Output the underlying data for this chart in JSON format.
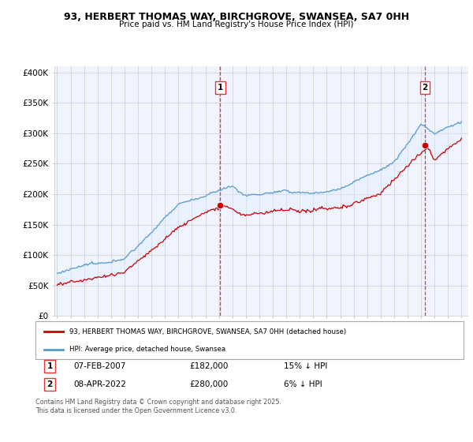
{
  "title": "93, HERBERT THOMAS WAY, BIRCHGROVE, SWANSEA, SA7 0HH",
  "subtitle": "Price paid vs. HM Land Registry's House Price Index (HPI)",
  "ylabel_ticks": [
    "£0",
    "£50K",
    "£100K",
    "£150K",
    "£200K",
    "£250K",
    "£300K",
    "£350K",
    "£400K"
  ],
  "ytick_values": [
    0,
    50000,
    100000,
    150000,
    200000,
    250000,
    300000,
    350000,
    400000
  ],
  "ylim": [
    0,
    410000
  ],
  "xlim_start": 1994.8,
  "xlim_end": 2025.5,
  "purchase1": {
    "date_num": 2007.1,
    "price": 182000,
    "label": "1",
    "date_str": "07-FEB-2007",
    "pct": "15% ↓ HPI"
  },
  "purchase2": {
    "date_num": 2022.27,
    "price": 280000,
    "label": "2",
    "date_str": "08-APR-2022",
    "pct": "6% ↓ HPI"
  },
  "legend1_label": "93, HERBERT THOMAS WAY, BIRCHGROVE, SWANSEA, SA7 0HH (detached house)",
  "legend2_label": "HPI: Average price, detached house, Swansea",
  "footnote": "Contains HM Land Registry data © Crown copyright and database right 2025.\nThis data is licensed under the Open Government Licence v3.0.",
  "price_line_color": "#cc0000",
  "hpi_line_color": "#5599cc",
  "fill_color": "#ddeeff",
  "vline_color": "#ee3333",
  "background_color": "#ffffff",
  "plot_bg_color": "#f0f4ff",
  "grid_color": "#cccccc"
}
